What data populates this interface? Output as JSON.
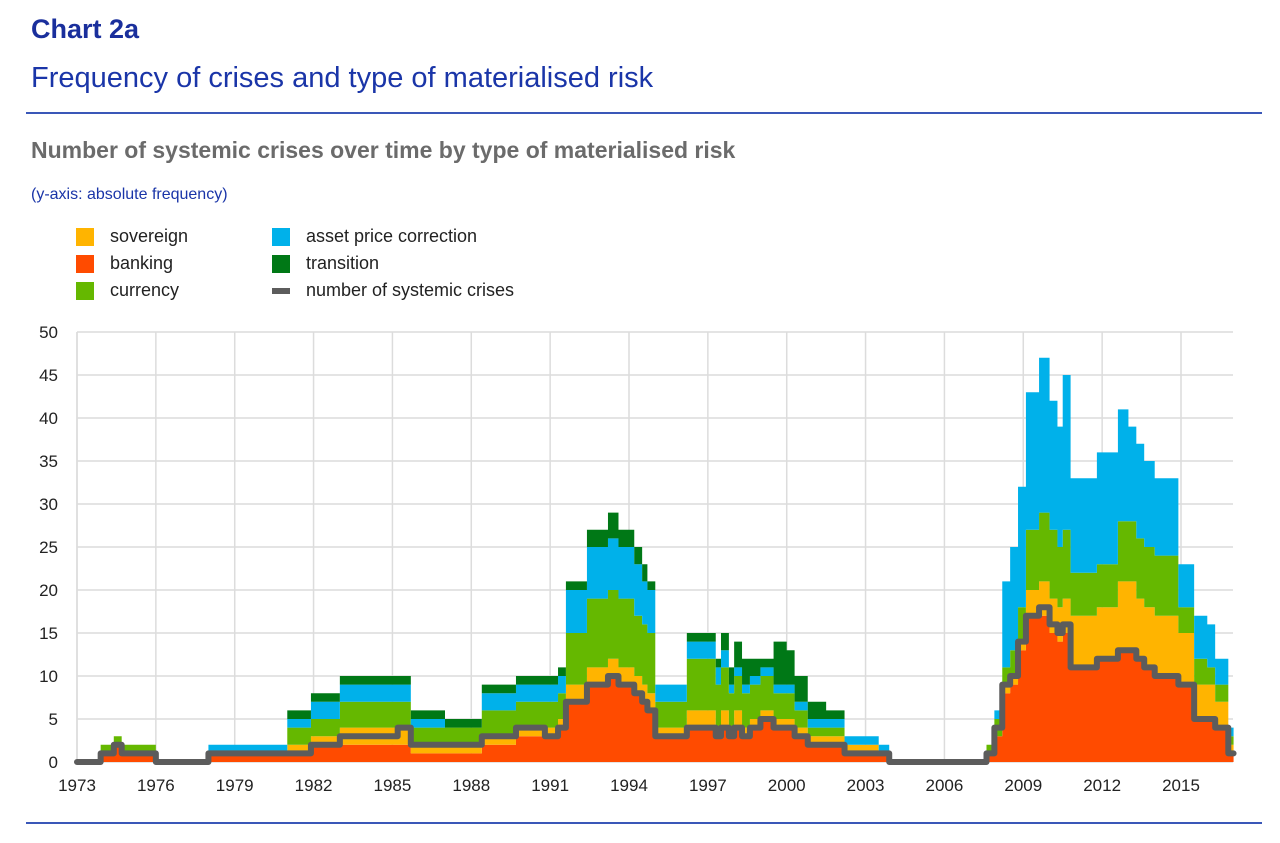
{
  "header": {
    "chart_label": "Chart 2a",
    "title": "Frequency of crises and type of materialised risk",
    "subtitle": "Number of systemic crises over time by type of materialised risk",
    "axis_note": "(y-axis: absolute frequency)"
  },
  "legend": [
    {
      "key": "sovereign",
      "label": "sovereign",
      "color": "#FFB400",
      "kind": "area"
    },
    {
      "key": "banking",
      "label": "banking",
      "color": "#FF4B00",
      "kind": "area"
    },
    {
      "key": "currency",
      "label": "currency",
      "color": "#65B800",
      "kind": "area"
    },
    {
      "key": "asset",
      "label": "asset price correction",
      "color": "#00B1EA",
      "kind": "area"
    },
    {
      "key": "transition",
      "label": "transition",
      "color": "#007816",
      "kind": "area"
    },
    {
      "key": "crises",
      "label": "number of systemic crises",
      "color": "#5C5C5C",
      "kind": "line"
    }
  ],
  "chart_data": {
    "type": "area",
    "stacked": true,
    "title": "Number of systemic crises over time by type of materialised risk",
    "xlabel": "",
    "ylabel": "absolute frequency",
    "ylim": [
      0,
      50
    ],
    "xlim": [
      1973,
      2017
    ],
    "yticks": [
      "0",
      "5",
      "10",
      "15",
      "20",
      "25",
      "30",
      "35",
      "40",
      "45",
      "50"
    ],
    "xticks": [
      "1973",
      "1976",
      "1979",
      "1982",
      "1985",
      "1988",
      "1991",
      "1994",
      "1997",
      "2000",
      "2003",
      "2006",
      "2009",
      "2012",
      "2015"
    ],
    "grid": true,
    "legend_position": "top-left",
    "stack_order": [
      "banking",
      "sovereign",
      "currency",
      "asset",
      "transition"
    ],
    "x": [
      1973.0,
      1973.9,
      1974.4,
      1974.7,
      1976.0,
      1978.0,
      1981.0,
      1981.9,
      1983.0,
      1985.2,
      1985.7,
      1987.0,
      1988.4,
      1989.7,
      1990.8,
      1991.3,
      1991.6,
      1992.4,
      1992.9,
      1993.2,
      1993.6,
      1994.2,
      1994.5,
      1994.7,
      1995.0,
      1995.7,
      1996.2,
      1997.0,
      1997.3,
      1997.5,
      1997.8,
      1998.0,
      1998.3,
      1998.6,
      1999.0,
      1999.5,
      2000.0,
      2000.3,
      2000.8,
      2001.5,
      2002.2,
      2003.5,
      2003.9,
      2007.4,
      2007.6,
      2007.9,
      2008.2,
      2008.5,
      2008.8,
      2009.1,
      2009.6,
      2010.0,
      2010.3,
      2010.5,
      2010.8,
      2011.5,
      2011.8,
      2012.6,
      2013.0,
      2013.3,
      2013.6,
      2014.0,
      2014.9,
      2015.5,
      2016.0,
      2016.3,
      2016.8,
      2017.0
    ],
    "series": [
      {
        "name": "banking",
        "values": [
          0,
          1,
          2,
          1,
          0,
          1,
          1,
          2,
          2,
          2,
          1,
          1,
          2,
          3,
          3,
          4,
          7,
          9,
          9,
          10,
          9,
          8,
          7,
          6,
          3,
          3,
          4,
          4,
          3,
          4,
          3,
          4,
          3,
          4,
          5,
          4,
          4,
          3,
          2,
          2,
          1,
          1,
          0,
          0,
          1,
          3,
          8,
          9,
          13,
          17,
          17,
          15,
          14,
          15,
          11,
          11,
          12,
          13,
          13,
          12,
          11,
          10,
          9,
          5,
          5,
          4,
          1,
          1
        ]
      },
      {
        "name": "sovereign",
        "values": [
          0,
          0,
          0,
          0,
          0,
          0,
          1,
          1,
          2,
          2,
          1,
          1,
          1,
          1,
          1,
          1,
          2,
          2,
          2,
          2,
          2,
          2,
          2,
          2,
          1,
          1,
          2,
          2,
          1,
          2,
          1,
          2,
          1,
          1,
          1,
          1,
          1,
          1,
          1,
          1,
          1,
          0,
          0,
          0,
          0,
          0,
          1,
          1,
          1,
          3,
          4,
          4,
          4,
          4,
          6,
          6,
          6,
          8,
          8,
          7,
          7,
          7,
          6,
          4,
          4,
          3,
          1,
          1
        ]
      },
      {
        "name": "currency",
        "values": [
          0,
          1,
          1,
          1,
          0,
          0,
          2,
          2,
          3,
          3,
          2,
          2,
          3,
          3,
          3,
          3,
          6,
          8,
          8,
          8,
          8,
          7,
          7,
          7,
          3,
          3,
          6,
          6,
          5,
          5,
          4,
          4,
          4,
          4,
          4,
          3,
          3,
          2,
          1,
          1,
          0,
          0,
          0,
          0,
          1,
          2,
          2,
          3,
          4,
          7,
          8,
          8,
          7,
          8,
          5,
          5,
          5,
          7,
          7,
          7,
          7,
          7,
          3,
          3,
          2,
          2,
          1,
          1
        ]
      },
      {
        "name": "asset",
        "values": [
          0,
          0,
          0,
          0,
          0,
          1,
          1,
          2,
          2,
          2,
          1,
          0,
          2,
          2,
          2,
          2,
          5,
          6,
          6,
          6,
          6,
          6,
          5,
          5,
          2,
          2,
          2,
          2,
          2,
          2,
          1,
          1,
          1,
          1,
          1,
          1,
          1,
          1,
          1,
          1,
          1,
          1,
          0,
          0,
          0,
          1,
          10,
          12,
          14,
          16,
          18,
          15,
          14,
          18,
          11,
          11,
          13,
          13,
          11,
          11,
          10,
          9,
          5,
          5,
          5,
          3,
          1,
          1
        ]
      },
      {
        "name": "transition",
        "values": [
          0,
          0,
          0,
          0,
          0,
          0,
          1,
          1,
          1,
          1,
          1,
          1,
          1,
          1,
          1,
          1,
          1,
          2,
          2,
          3,
          2,
          2,
          2,
          1,
          0,
          0,
          1,
          1,
          1,
          2,
          2,
          3,
          3,
          2,
          1,
          5,
          4,
          3,
          2,
          1,
          0,
          0,
          0,
          0,
          0,
          0,
          0,
          0,
          0,
          0,
          0,
          0,
          0,
          0,
          0,
          0,
          0,
          0,
          0,
          0,
          0,
          0,
          0,
          0,
          0,
          0,
          0,
          0
        ]
      },
      {
        "name": "number of systemic crises",
        "kind": "line",
        "values": [
          0,
          1,
          2,
          1,
          0,
          1,
          1,
          2,
          3,
          4,
          2,
          2,
          3,
          4,
          3,
          4,
          7,
          9,
          9,
          10,
          9,
          8,
          7,
          6,
          3,
          3,
          4,
          4,
          3,
          4,
          3,
          4,
          3,
          4,
          5,
          4,
          4,
          3,
          2,
          2,
          1,
          1,
          0,
          0,
          1,
          4,
          9,
          10,
          14,
          17,
          18,
          16,
          15,
          16,
          11,
          11,
          12,
          13,
          13,
          12,
          11,
          10,
          9,
          5,
          5,
          4,
          1,
          1
        ]
      }
    ]
  },
  "colors": {
    "banking": "#FF4B00",
    "sovereign": "#FFB400",
    "currency": "#65B800",
    "asset": "#00B1EA",
    "transition": "#007816",
    "crises": "#5C5C5C",
    "grid": "#DCDCDC"
  }
}
